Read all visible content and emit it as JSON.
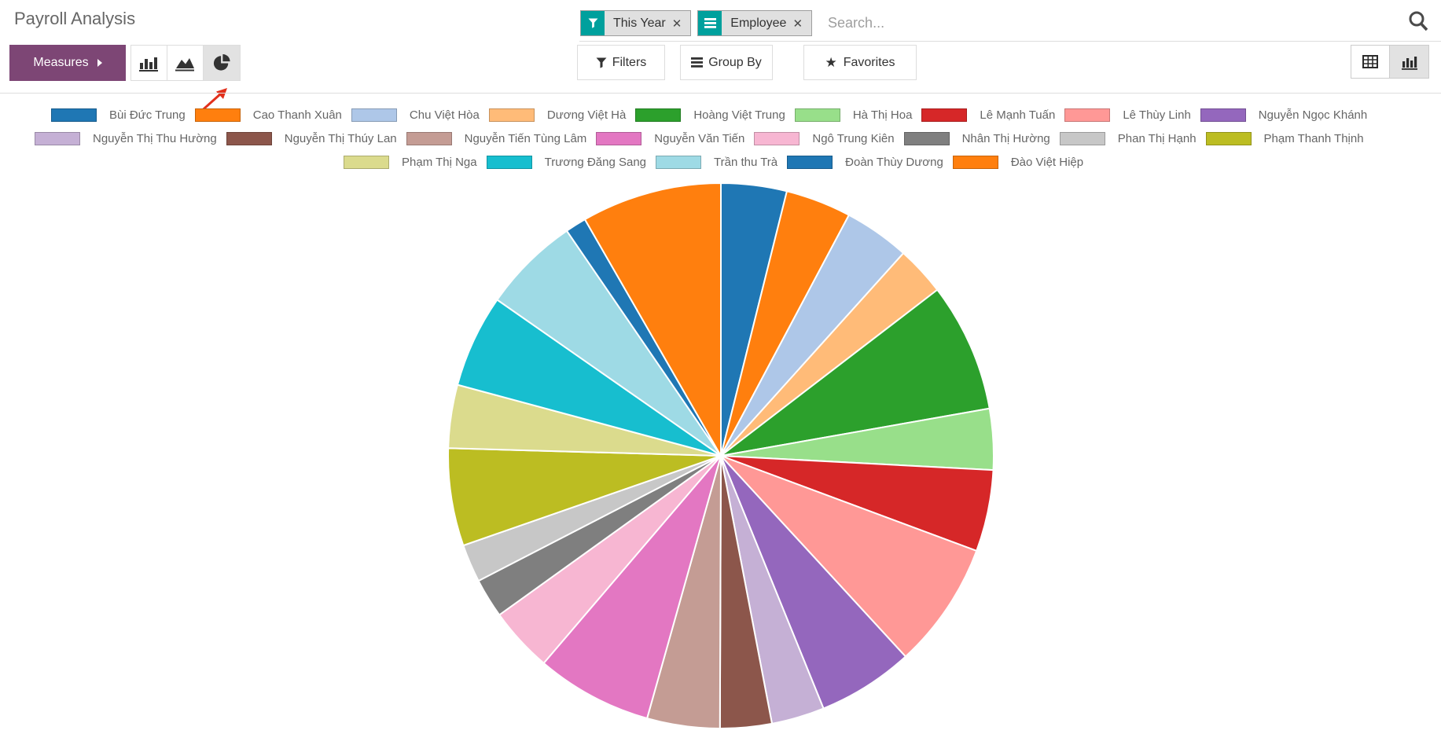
{
  "page_title": "Payroll Analysis",
  "accent_color": "#7d4675",
  "search": {
    "facets": [
      {
        "label": "This Year",
        "icon": "filter-icon",
        "remove": "x"
      },
      {
        "label": "Employee",
        "icon": "group-by-icon",
        "remove": "x"
      }
    ],
    "placeholder": "Search..."
  },
  "toolbar": {
    "measures_label": "Measures",
    "chart_type_buttons": [
      "bar",
      "area",
      "pie"
    ],
    "active_chart_type": "pie",
    "filters_label": "Filters",
    "group_by_label": "Group By",
    "favorites_label": "Favorites"
  },
  "view_switcher": {
    "buttons": [
      "pivot",
      "graph"
    ],
    "active": "graph"
  },
  "annotation": {
    "type": "red-arrow",
    "points_at": "pie-chart-type-button",
    "color": "#e2301c"
  },
  "chart_data": {
    "type": "pie",
    "title": "Payroll Analysis",
    "legend_position": "top",
    "legend_rows": [
      9,
      8,
      5
    ],
    "values_unit": "degrees_of_arc",
    "categories": [
      "Bùi Đức Trung",
      "Cao Thanh Xuân",
      "Chu Việt Hòa",
      "Dương Việt Hà",
      "Hoàng Việt Trung",
      "Hà Thị Hoa",
      "Lê Mạnh Tuấn",
      "Lê Thùy Linh",
      "Nguyễn Ngọc Khánh",
      "Nguyễn Thị Thu Hường",
      "Nguyễn Thị Thúy Lan",
      "Nguyễn Tiến Tùng Lâm",
      "Nguyễn Văn Tiến",
      "Ngô Trung Kiên",
      "Nhân Thị Hường",
      "Phan Thị Hạnh",
      "Phạm Thanh Thịnh",
      "Phạm Thị Nga",
      "Trương Đăng Sang",
      "Trần thu Trà",
      "Đoàn Thùy Dương",
      "Đào Việt Hiệp"
    ],
    "values": [
      14.0,
      14.0,
      14.0,
      10.5,
      27.5,
      13.0,
      17.4,
      27.0,
      20.5,
      11.3,
      11.0,
      15.5,
      24.8,
      13.8,
      8.4,
      8.1,
      20.8,
      13.5,
      19.8,
      20.7,
      4.5,
      29.9
    ],
    "colors": [
      "#1f77b4",
      "#ff7f0e",
      "#aec7e8",
      "#ffbb78",
      "#2ca02c",
      "#98df8a",
      "#d62728",
      "#ff9896",
      "#9467bd",
      "#c5b0d5",
      "#8c564b",
      "#c49c94",
      "#e377c2",
      "#f7b6d2",
      "#7f7f7f",
      "#c7c7c7",
      "#bcbd22",
      "#dbdb8d",
      "#17becf",
      "#9edae5",
      "#1f77b4",
      "#ff7f0e"
    ],
    "legend_row_left_offsets": [
      65,
      44,
      437
    ]
  }
}
